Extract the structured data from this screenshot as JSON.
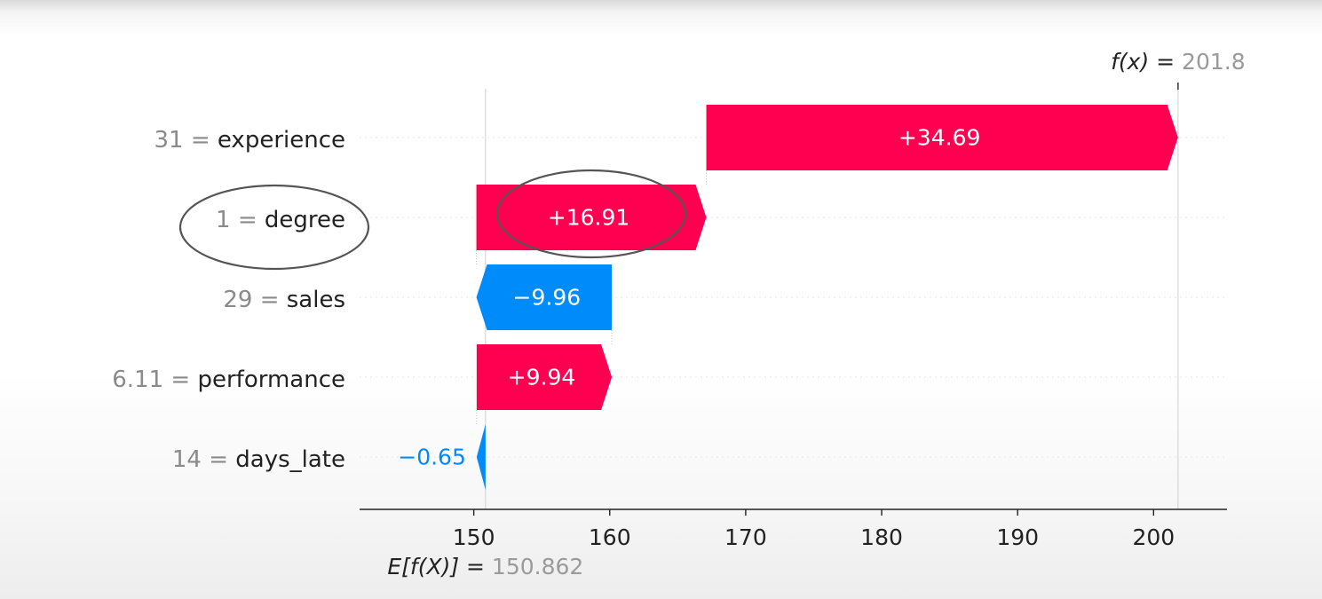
{
  "chart_data": {
    "type": "waterfall",
    "base_value": 150.862,
    "base_value_label": "150.862",
    "output_value": 201.8,
    "output_value_label": "201.8",
    "base_label": "E[f(X)] =",
    "output_label": "f(x) =",
    "features": [
      {
        "name": "experience",
        "value_label": "31",
        "contribution": 34.69,
        "label": "+34.69"
      },
      {
        "name": "degree",
        "value_label": "1",
        "contribution": 16.91,
        "label": "+16.91"
      },
      {
        "name": "sales",
        "value_label": "29",
        "contribution": -9.96,
        "label": "−9.96"
      },
      {
        "name": "performance",
        "value_label": "6.11",
        "contribution": 9.94,
        "label": "+9.94"
      },
      {
        "name": "days_late",
        "value_label": "14",
        "contribution": -0.65,
        "label": "−0.65"
      }
    ],
    "xticks": [
      "150",
      "160",
      "170",
      "180",
      "190",
      "200"
    ],
    "xlim": [
      141.6,
      205.4
    ],
    "colors": {
      "positive": "#ff0051",
      "negative": "#008bfb"
    },
    "annotations": [
      "circle around degree label",
      "circle around +16.91 bar label"
    ]
  }
}
